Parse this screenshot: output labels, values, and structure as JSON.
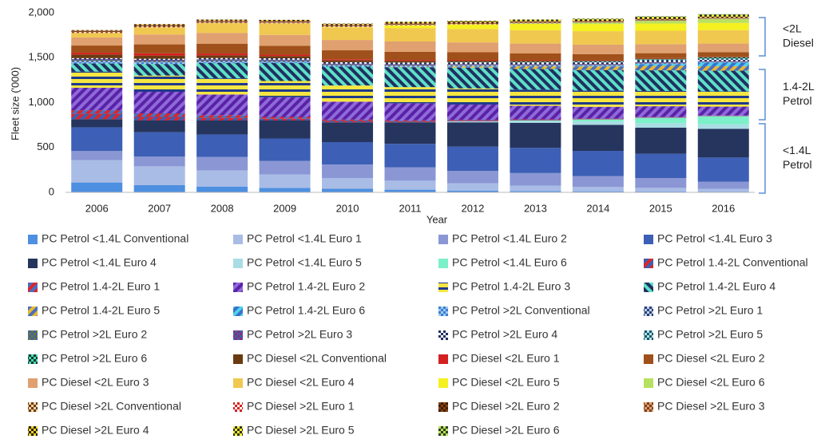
{
  "chart_data": {
    "type": "stacked-bar",
    "y_label": "Fleet size ('000)",
    "x_label": "Year",
    "categories": [
      "2006",
      "2007",
      "2008",
      "2009",
      "2010",
      "2011",
      "2012",
      "2013",
      "2014",
      "2015",
      "2016"
    ],
    "ylim": [
      0,
      2000
    ],
    "yticks": [
      0,
      500,
      {
        "value": 1000,
        "label": "1,000"
      },
      {
        "value": 1500,
        "label": "1,500"
      },
      {
        "value": 2000,
        "label": "2,000"
      }
    ],
    "annotations": [
      [
        "<2L",
        "Diesel"
      ],
      [
        "1.4-2L",
        "Petrol"
      ],
      [
        "<1.4L",
        "Petrol"
      ]
    ],
    "series": [
      {
        "name": "PC Petrol <1.4L Conventional",
        "color": "#4d8fe0",
        "values": [
          110,
          80,
          65,
          50,
          40,
          30,
          20,
          15,
          12,
          10,
          8
        ]
      },
      {
        "name": "PC Petrol <1.4L Euro 1",
        "color": "#a9bce6",
        "values": [
          250,
          210,
          180,
          150,
          120,
          100,
          80,
          60,
          50,
          40,
          30
        ]
      },
      {
        "name": "PC Petrol <1.4L Euro 2",
        "color": "#8a97d4",
        "values": [
          100,
          110,
          150,
          150,
          150,
          150,
          140,
          140,
          120,
          110,
          80
        ]
      },
      {
        "name": "PC Petrol <1.4L Euro 3",
        "color": "#3d5fb5",
        "values": [
          265,
          270,
          250,
          250,
          250,
          260,
          270,
          280,
          280,
          270,
          270
        ]
      },
      {
        "name": "PC Petrol <1.4L Euro 4",
        "color": "#25355e",
        "values": [
          90,
          130,
          155,
          200,
          220,
          240,
          270,
          280,
          290,
          290,
          320
        ]
      },
      {
        "name": "PC Petrol <1.4L Euro 5",
        "color": "#a9dde4",
        "values": [
          0,
          0,
          0,
          0,
          0,
          0,
          10,
          20,
          40,
          50,
          50
        ]
      },
      {
        "name": "PC Petrol <1.4L Euro 6",
        "color": "#7cf0c8",
        "values": [
          0,
          0,
          0,
          0,
          0,
          0,
          0,
          5,
          20,
          60,
          90
        ]
      },
      {
        "name": "PC Petrol 1.4-2L Conventional",
        "color": "#d9262c",
        "color2": "#3a5fb5",
        "pattern": "diag",
        "values": [
          60,
          40,
          30,
          20,
          15,
          10,
          8,
          6,
          5,
          4,
          3
        ]
      },
      {
        "name": "PC Petrol 1.4-2L Euro 1",
        "color": "#4a6fc0",
        "color2": "#d9262c",
        "pattern": "diag",
        "values": [
          40,
          40,
          30,
          20,
          15,
          12,
          10,
          8,
          6,
          5,
          4
        ]
      },
      {
        "name": "PC Petrol 1.4-2L Euro 2",
        "color": "#8e6ad8",
        "color2": "#5a22a8",
        "pattern": "diag",
        "values": [
          250,
          240,
          230,
          220,
          200,
          190,
          170,
          150,
          130,
          120,
          100
        ]
      },
      {
        "name": "PC Petrol 1.4-2L Euro 3",
        "color": "#f5e642",
        "color2": "#1f3a8a",
        "pattern": "horiz",
        "values": [
          180,
          180,
          180,
          180,
          180,
          180,
          180,
          180,
          180,
          170,
          170
        ]
      },
      {
        "name": "PC Petrol 1.4-2L Euro 4",
        "color": "#5ee0c8",
        "color2": "#1f3060",
        "pattern": "diagr",
        "values": [
          90,
          130,
          170,
          200,
          210,
          220,
          230,
          230,
          230,
          230,
          230
        ]
      },
      {
        "name": "PC Petrol 1.4-2L Euro 5",
        "color": "#e8b830",
        "color2": "#4a6fc0",
        "pattern": "diag",
        "values": [
          0,
          0,
          0,
          0,
          0,
          5,
          15,
          30,
          40,
          50,
          50
        ]
      },
      {
        "name": "PC Petrol 1.4-2L Euro 6",
        "color": "#4cd3e8",
        "color2": "#3a6fd0",
        "pattern": "diag",
        "values": [
          0,
          0,
          0,
          0,
          0,
          0,
          0,
          0,
          5,
          20,
          40
        ]
      },
      {
        "name": "PC Petrol >2L Conventional",
        "color": "#3a7fd0",
        "color2": "#a0c8f0",
        "pattern": "check",
        "values": [
          20,
          18,
          16,
          14,
          12,
          10,
          8,
          7,
          6,
          5,
          4
        ]
      },
      {
        "name": "PC Petrol >2L Euro 1",
        "color": "#2a4070",
        "color2": "#c0d0f0",
        "pattern": "check",
        "values": [
          8,
          7,
          6,
          5,
          4,
          4,
          3,
          3,
          2,
          2,
          2
        ]
      },
      {
        "name": "PC Petrol >2L Euro 2",
        "color": "#6b7a30",
        "color2": "#3d5fb5",
        "pattern": "check",
        "values": [
          12,
          11,
          10,
          9,
          8,
          7,
          6,
          5,
          5,
          4,
          4
        ]
      },
      {
        "name": "PC Petrol >2L Euro 3",
        "color": "#8a3070",
        "color2": "#3d5fb5",
        "pattern": "check",
        "values": [
          10,
          10,
          10,
          10,
          10,
          10,
          9,
          9,
          9,
          8,
          8
        ]
      },
      {
        "name": "PC Petrol >2L Euro 4",
        "color": "#203060",
        "color2": "#ffffff",
        "pattern": "check",
        "values": [
          10,
          12,
          14,
          15,
          16,
          17,
          18,
          18,
          18,
          18,
          18
        ]
      },
      {
        "name": "PC Petrol >2L Euro 5",
        "color": "#2a5060",
        "color2": "#a0e8f0",
        "pattern": "check",
        "values": [
          0,
          0,
          0,
          0,
          0,
          2,
          5,
          8,
          10,
          12,
          12
        ]
      },
      {
        "name": "PC Petrol >2L Euro 6",
        "color": "#3ee0a0",
        "color2": "#203040",
        "pattern": "check",
        "values": [
          0,
          0,
          0,
          0,
          0,
          0,
          0,
          0,
          2,
          5,
          10
        ]
      },
      {
        "name": "PC Diesel <2L Conventional",
        "color": "#6b3a10",
        "values": [
          40,
          35,
          30,
          25,
          20,
          18,
          15,
          12,
          10,
          8,
          6
        ]
      },
      {
        "name": "PC Diesel <2L Euro 1",
        "color": "#d42020",
        "values": [
          20,
          25,
          20,
          15,
          12,
          10,
          8,
          6,
          5,
          4,
          3
        ]
      },
      {
        "name": "PC Diesel <2L Euro 2",
        "color": "#a0501a",
        "values": [
          80,
          100,
          110,
          100,
          100,
          90,
          85,
          75,
          65,
          55,
          50
        ]
      },
      {
        "name": "PC Diesel <2L Euro 3",
        "color": "#e0a070",
        "values": [
          90,
          110,
          120,
          120,
          115,
          115,
          110,
          110,
          105,
          100,
          95
        ]
      },
      {
        "name": "PC Diesel <2L Euro 4",
        "color": "#f0c850",
        "values": [
          50,
          80,
          110,
          130,
          140,
          150,
          150,
          150,
          150,
          150,
          150
        ]
      },
      {
        "name": "PC Diesel <2L Euro 5",
        "color": "#f5f020",
        "values": [
          0,
          0,
          0,
          0,
          5,
          30,
          50,
          70,
          80,
          80,
          80
        ]
      },
      {
        "name": "PC Diesel <2L Euro 6",
        "color": "#b8e060",
        "values": [
          0,
          0,
          0,
          0,
          0,
          0,
          0,
          5,
          15,
          30,
          45
        ]
      },
      {
        "name": "PC Diesel >2L Conventional",
        "color": "#6b3a10",
        "color2": "#f0d0a0",
        "pattern": "check",
        "values": [
          8,
          7,
          6,
          5,
          4,
          4,
          3,
          3,
          2,
          2,
          2
        ]
      },
      {
        "name": "PC Diesel >2L Euro 1",
        "color": "#d42020",
        "color2": "#ffffff",
        "pattern": "check",
        "values": [
          5,
          5,
          4,
          4,
          3,
          3,
          2,
          2,
          2,
          2,
          2
        ]
      },
      {
        "name": "PC Diesel >2L Euro 2",
        "color": "#8a4010",
        "color2": "#3a2008",
        "pattern": "check",
        "values": [
          8,
          8,
          8,
          7,
          7,
          6,
          6,
          5,
          5,
          5,
          4
        ]
      },
      {
        "name": "PC Diesel >2L Euro 3",
        "color": "#e0a070",
        "color2": "#7a4020",
        "pattern": "check",
        "values": [
          8,
          10,
          12,
          12,
          12,
          12,
          12,
          12,
          11,
          11,
          10
        ]
      },
      {
        "name": "PC Diesel >2L Euro 4",
        "color": "#f0d020",
        "color2": "#202020",
        "pattern": "check",
        "values": [
          3,
          6,
          8,
          10,
          11,
          12,
          12,
          12,
          12,
          12,
          12
        ]
      },
      {
        "name": "PC Diesel >2L Euro 5",
        "color": "#f5f020",
        "color2": "#303030",
        "pattern": "check",
        "values": [
          0,
          0,
          0,
          0,
          0,
          3,
          6,
          8,
          10,
          12,
          12
        ]
      },
      {
        "name": "PC Diesel >2L Euro 6",
        "color": "#b8e060",
        "color2": "#304020",
        "pattern": "check",
        "values": [
          0,
          0,
          0,
          0,
          0,
          0,
          0,
          1,
          3,
          6,
          10
        ]
      }
    ]
  }
}
